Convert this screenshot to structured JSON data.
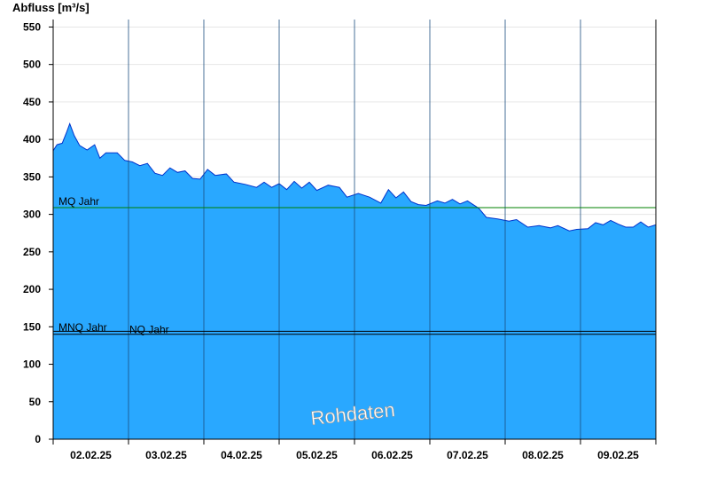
{
  "chart_data": {
    "type": "area",
    "ylabel": "Abfluss [m³/s]",
    "ylim": [
      0,
      560
    ],
    "yticks": [
      0,
      50,
      100,
      150,
      200,
      250,
      300,
      350,
      400,
      450,
      500,
      550
    ],
    "xlim": [
      0,
      8
    ],
    "xtick_labels": [
      "02.02.25",
      "03.02.25",
      "04.02.25",
      "05.02.25",
      "06.02.25",
      "07.02.25",
      "08.02.25",
      "09.02.25"
    ],
    "grid": true,
    "colors": {
      "area_fill": "#29a8ff",
      "area_line": "#0033cc",
      "mq_line": "#008000",
      "nq_lines": "#000000",
      "grid": "#e6e6e6"
    },
    "series": [
      {
        "points": [
          [
            0.0,
            385
          ],
          [
            0.05,
            393
          ],
          [
            0.12,
            395
          ],
          [
            0.18,
            410
          ],
          [
            0.22,
            421
          ],
          [
            0.28,
            405
          ],
          [
            0.35,
            392
          ],
          [
            0.45,
            386
          ],
          [
            0.55,
            393
          ],
          [
            0.62,
            375
          ],
          [
            0.7,
            382
          ],
          [
            0.85,
            382
          ],
          [
            0.95,
            372
          ],
          [
            1.05,
            370
          ],
          [
            1.15,
            365
          ],
          [
            1.25,
            368
          ],
          [
            1.35,
            355
          ],
          [
            1.45,
            352
          ],
          [
            1.55,
            362
          ],
          [
            1.65,
            356
          ],
          [
            1.75,
            358
          ],
          [
            1.85,
            348
          ],
          [
            1.95,
            347
          ],
          [
            2.05,
            360
          ],
          [
            2.15,
            352
          ],
          [
            2.3,
            354
          ],
          [
            2.4,
            343
          ],
          [
            2.55,
            340
          ],
          [
            2.7,
            336
          ],
          [
            2.8,
            343
          ],
          [
            2.9,
            336
          ],
          [
            3.0,
            341
          ],
          [
            3.1,
            333
          ],
          [
            3.2,
            344
          ],
          [
            3.3,
            335
          ],
          [
            3.4,
            343
          ],
          [
            3.5,
            332
          ],
          [
            3.65,
            339
          ],
          [
            3.8,
            336
          ],
          [
            3.9,
            323
          ],
          [
            4.05,
            328
          ],
          [
            4.2,
            323
          ],
          [
            4.35,
            315
          ],
          [
            4.45,
            333
          ],
          [
            4.55,
            322
          ],
          [
            4.65,
            330
          ],
          [
            4.75,
            317
          ],
          [
            4.85,
            313
          ],
          [
            4.95,
            312
          ],
          [
            5.1,
            318
          ],
          [
            5.2,
            315
          ],
          [
            5.3,
            320
          ],
          [
            5.4,
            314
          ],
          [
            5.5,
            318
          ],
          [
            5.65,
            308
          ],
          [
            5.75,
            296
          ],
          [
            5.9,
            294
          ],
          [
            6.05,
            291
          ],
          [
            6.15,
            293
          ],
          [
            6.3,
            283
          ],
          [
            6.45,
            285
          ],
          [
            6.6,
            282
          ],
          [
            6.7,
            285
          ],
          [
            6.85,
            278
          ],
          [
            6.95,
            280
          ],
          [
            7.1,
            281
          ],
          [
            7.2,
            289
          ],
          [
            7.3,
            286
          ],
          [
            7.4,
            292
          ],
          [
            7.5,
            287
          ],
          [
            7.6,
            283
          ],
          [
            7.7,
            283
          ],
          [
            7.8,
            290
          ],
          [
            7.9,
            283
          ],
          [
            8.0,
            286
          ]
        ]
      }
    ],
    "reference_lines": [
      {
        "label": "MQ Jahr",
        "value": 309,
        "color": "#008000"
      },
      {
        "label": "MNQ Jahr",
        "value": 140,
        "color": "#000000"
      },
      {
        "label": "NQ Jahr",
        "value": 144,
        "color": "#000000"
      }
    ]
  },
  "watermark": "Rohdaten"
}
